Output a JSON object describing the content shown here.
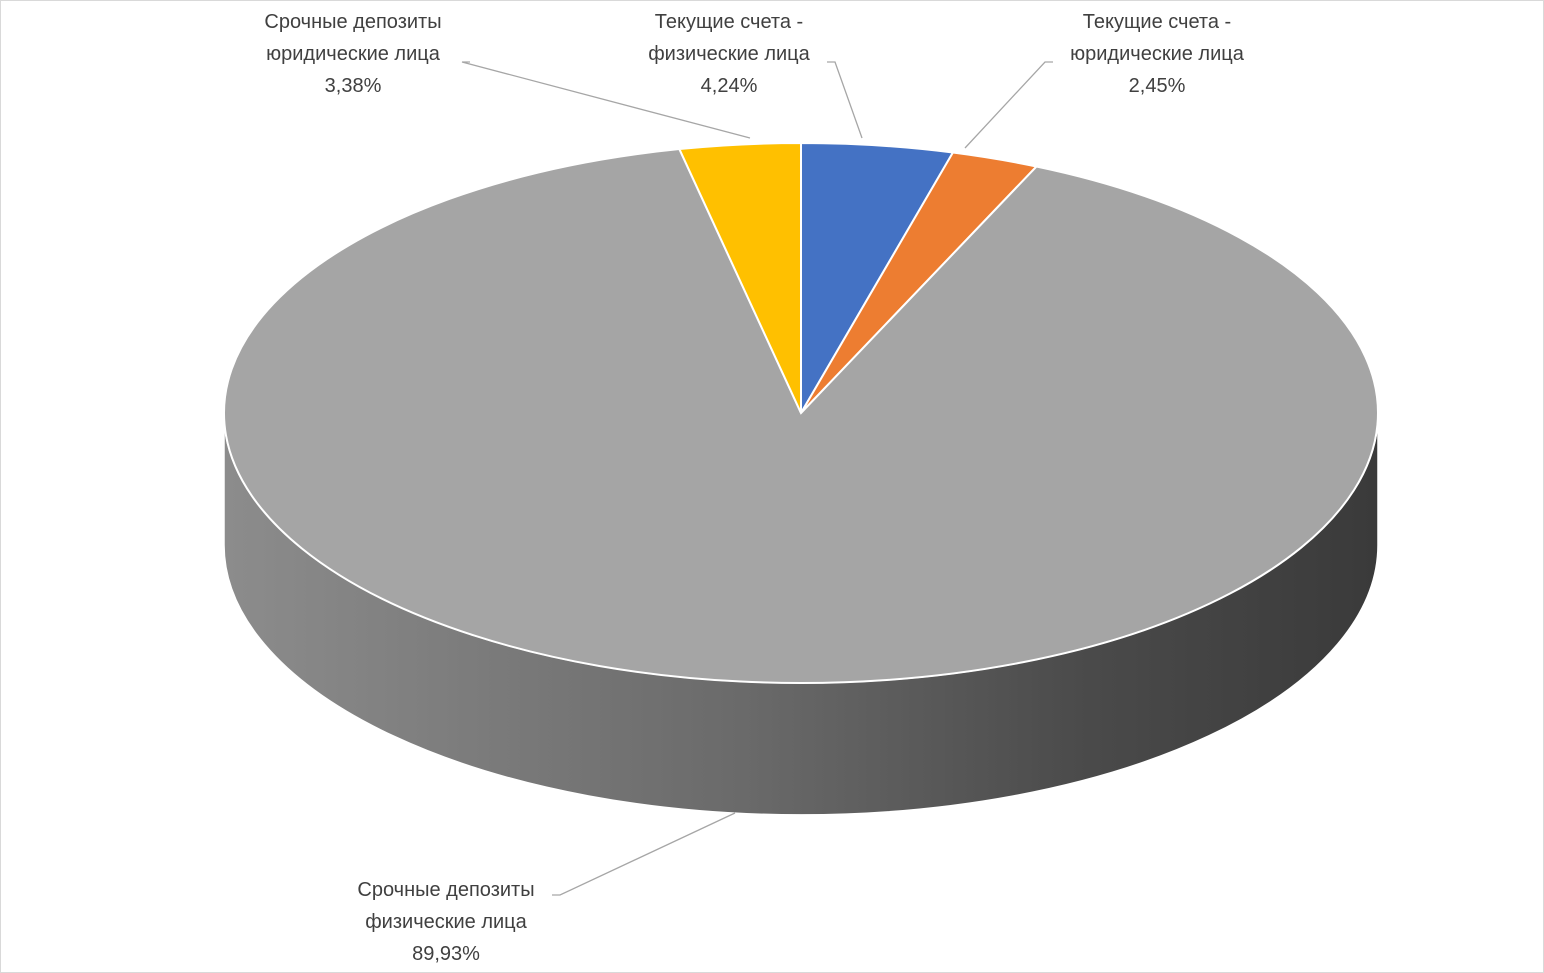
{
  "chart_data": {
    "type": "pie",
    "variant": "3d",
    "title": "",
    "slices": [
      {
        "label_line1": "Текущие счета -",
        "label_line2": "физические лица",
        "value": 4.24,
        "value_text": "4,24%",
        "color": "#4472c4"
      },
      {
        "label_line1": "Текущие счета -",
        "label_line2": "юридические лица",
        "value": 2.45,
        "value_text": "2,45%",
        "color": "#ed7d31"
      },
      {
        "label_line1": "Срочные депозиты",
        "label_line2": "физические лица",
        "value": 89.93,
        "value_text": "89,93%",
        "color": "#a5a5a5"
      },
      {
        "label_line1": "Срочные депозиты",
        "label_line2": "юридические лица",
        "value": 3.38,
        "value_text": "3,38%",
        "color": "#ffc000"
      }
    ],
    "legend": "none",
    "leader_lines_color": "#a6a6a6"
  }
}
